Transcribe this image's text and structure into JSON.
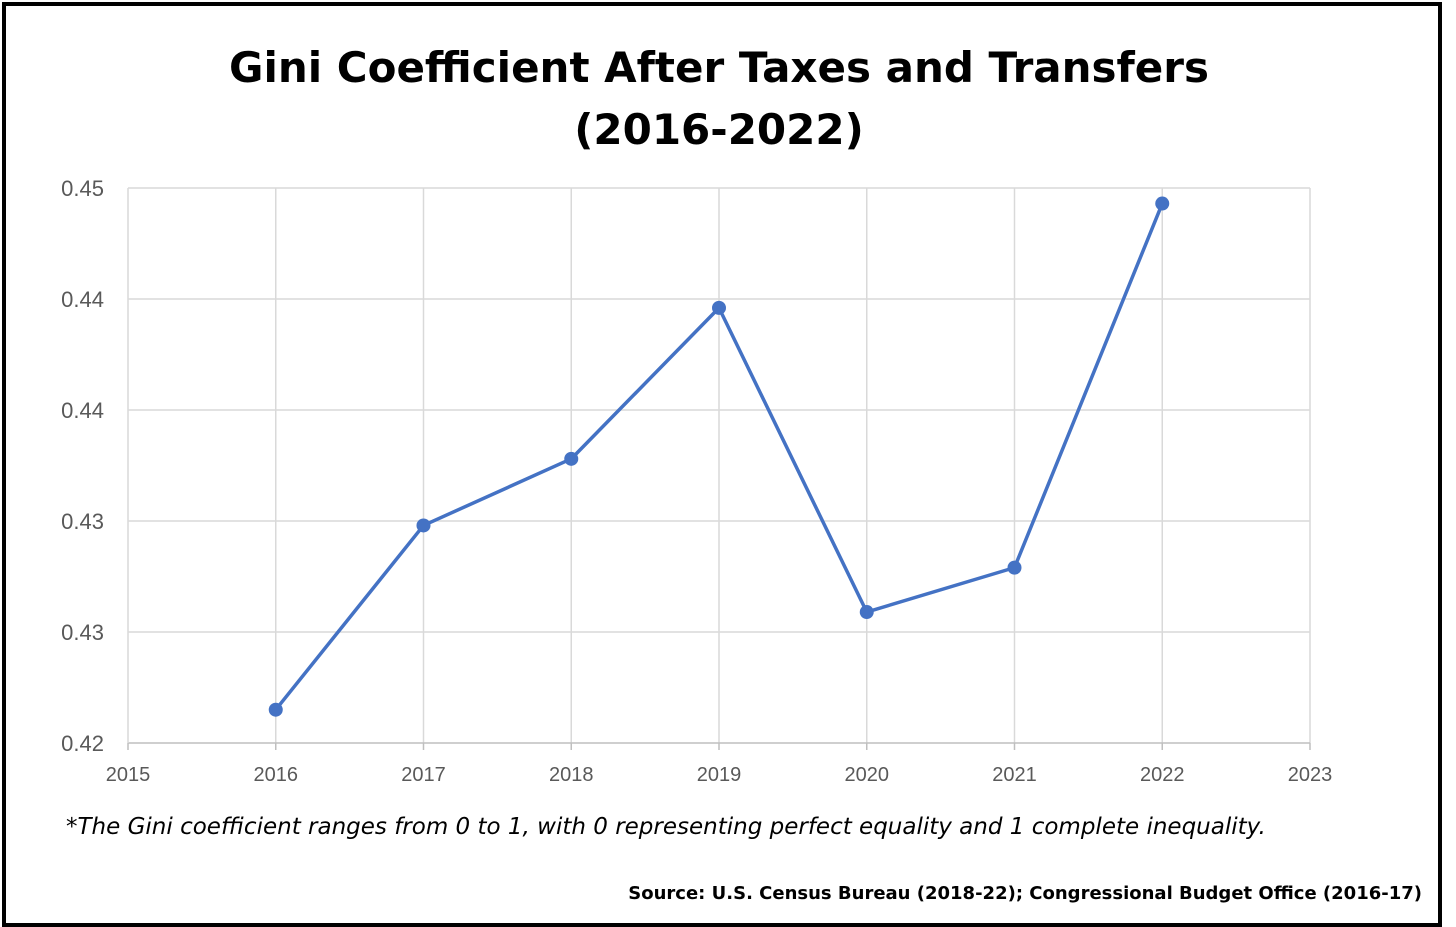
{
  "chart_data": {
    "type": "line",
    "title_line1": "Gini Coefficient After Taxes and Transfers",
    "title_line2": "(2016-2022)",
    "xlabel": "",
    "ylabel": "",
    "x_ticks": [
      "2015",
      "2016",
      "2017",
      "2018",
      "2019",
      "2020",
      "2021",
      "2022",
      "2023"
    ],
    "y_ticks": [
      "0.42",
      "0.43",
      "0.43",
      "0.44",
      "0.44",
      "0.45"
    ],
    "xlim": [
      2015,
      2023
    ],
    "ylim": [
      0.42,
      0.445
    ],
    "grid": true,
    "legend": "none",
    "series": [
      {
        "color": "#4472C4",
        "x": [
          2016,
          2017,
          2018,
          2019,
          2020,
          2021,
          2022
        ],
        "values": [
          0.4215,
          0.4298,
          0.4328,
          0.4396,
          0.4259,
          0.4279,
          0.4443
        ]
      }
    ],
    "footnote": "*The Gini coefficient ranges from 0 to 1, with 0 representing perfect equality and 1 complete inequality.",
    "source": "Source: U.S. Census Bureau (2018-22); Congressional Budget Office (2016-17)"
  }
}
